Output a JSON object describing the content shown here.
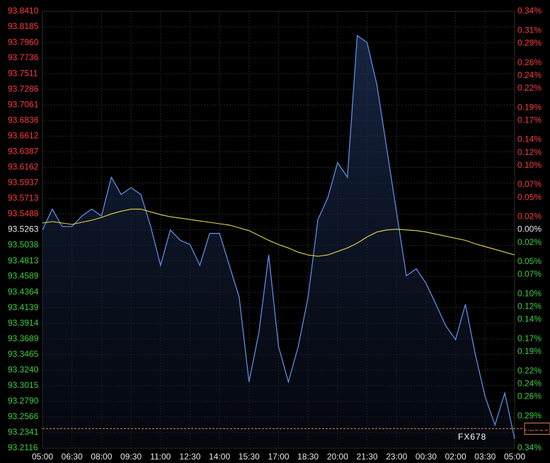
{
  "chart_data": {
    "type": "line",
    "watermark": "FX678",
    "background": "#000000",
    "grid": true,
    "up_color": "#ff3b3b",
    "down_color": "#3ecf3e",
    "flat_color": "#e8e8e8",
    "categories": [
      "05:00",
      null,
      null,
      "06:30",
      null,
      null,
      "08:00",
      null,
      null,
      "09:30",
      null,
      null,
      "11:00",
      null,
      null,
      "12:30",
      null,
      null,
      "14:00",
      null,
      null,
      "15:30",
      null,
      null,
      "17:00",
      null,
      null,
      "18:30",
      null,
      null,
      "20:00",
      null,
      null,
      "21:30",
      null,
      null,
      "23:00",
      null,
      null,
      "00:30",
      null,
      null,
      "02:00",
      null,
      null,
      "03:30",
      null,
      null,
      "05:00"
    ],
    "series": [
      {
        "color": "#5b8de0",
        "fill": true,
        "values": [
          93.526,
          93.556,
          93.531,
          93.531,
          93.546,
          93.556,
          93.546,
          93.602,
          93.577,
          93.587,
          93.577,
          93.531,
          93.475,
          93.526,
          93.511,
          93.505,
          93.475,
          93.521,
          93.521,
          93.475,
          93.429,
          93.307,
          93.378,
          93.49,
          93.358,
          93.307,
          93.358,
          93.429,
          93.541,
          93.572,
          93.623,
          93.602,
          93.806,
          93.796,
          93.735,
          93.643,
          93.551,
          93.46,
          93.47,
          93.449,
          93.419,
          93.388,
          93.368,
          93.419,
          93.347,
          93.286,
          93.245,
          93.291,
          93.225
        ]
      },
      {
        "color": "#e0d84a",
        "fill": false,
        "values": [
          93.536,
          93.538,
          93.536,
          93.534,
          93.537,
          93.54,
          93.544,
          93.549,
          93.553,
          93.556,
          93.556,
          93.552,
          93.548,
          93.545,
          93.543,
          93.541,
          93.539,
          93.537,
          93.535,
          93.533,
          93.529,
          93.525,
          93.518,
          93.511,
          93.505,
          93.5,
          93.494,
          93.49,
          93.488,
          93.49,
          93.495,
          93.5,
          93.507,
          93.516,
          93.523,
          93.526,
          93.527,
          93.526,
          93.525,
          93.523,
          93.52,
          93.517,
          93.514,
          93.511,
          93.506,
          93.502,
          93.498,
          93.494,
          93.49
        ]
      }
    ],
    "ylim": [
      93.2116,
      93.841
    ],
    "yticks": [
      {
        "value": 93.841,
        "label": "93.8410"
      },
      {
        "value": 93.8185,
        "label": "93.8185"
      },
      {
        "value": 93.796,
        "label": "93.7960"
      },
      {
        "value": 93.7736,
        "label": "93.7736"
      },
      {
        "value": 93.7511,
        "label": "93.7511"
      },
      {
        "value": 93.7286,
        "label": "93.7286"
      },
      {
        "value": 93.7061,
        "label": "93.7061"
      },
      {
        "value": 93.6836,
        "label": "93.6836"
      },
      {
        "value": 93.6612,
        "label": "93.6612"
      },
      {
        "value": 93.6387,
        "label": "93.6387"
      },
      {
        "value": 93.6162,
        "label": "93.6162"
      },
      {
        "value": 93.5937,
        "label": "93.5937"
      },
      {
        "value": 93.5713,
        "label": "93.5713"
      },
      {
        "value": 93.5488,
        "label": "93.5488"
      },
      {
        "value": 93.5263,
        "label": "93.5263"
      },
      {
        "value": 93.5038,
        "label": "93.5038"
      },
      {
        "value": 93.4813,
        "label": "93.4813"
      },
      {
        "value": 93.4589,
        "label": "93.4589"
      },
      {
        "value": 93.4364,
        "label": "93.4364"
      },
      {
        "value": 93.4139,
        "label": "93.4139"
      },
      {
        "value": 93.3914,
        "label": "93.3914"
      },
      {
        "value": 93.3689,
        "label": "93.3689"
      },
      {
        "value": 93.3465,
        "label": "93.3465"
      },
      {
        "value": 93.324,
        "label": "93.3240"
      },
      {
        "value": 93.3015,
        "label": "93.3015"
      },
      {
        "value": 93.279,
        "label": "93.2790"
      },
      {
        "value": 93.2566,
        "label": "93.2566"
      },
      {
        "value": 93.2341,
        "label": "93.2341"
      },
      {
        "value": 93.2116,
        "label": "93.2116"
      }
    ],
    "y2lim": [
      -0.34,
      0.34
    ],
    "y2ticks": [
      {
        "value": 0.34,
        "label": "0.34%"
      },
      {
        "value": 0.31,
        "label": "0.31%"
      },
      {
        "value": 0.29,
        "label": "0.29%"
      },
      {
        "value": 0.26,
        "label": "0.26%"
      },
      {
        "value": 0.24,
        "label": "0.24%"
      },
      {
        "value": 0.22,
        "label": "0.22%"
      },
      {
        "value": 0.19,
        "label": "0.19%"
      },
      {
        "value": 0.17,
        "label": "0.17%"
      },
      {
        "value": 0.14,
        "label": "0.14%"
      },
      {
        "value": 0.12,
        "label": "0.12%"
      },
      {
        "value": 0.1,
        "label": "0.10%"
      },
      {
        "value": 0.07,
        "label": "0.07%"
      },
      {
        "value": 0.05,
        "label": "0.05%"
      },
      {
        "value": 0.02,
        "label": "0.02%"
      },
      {
        "value": 0,
        "label": "0.00%"
      },
      {
        "value": -0.02,
        "label": "0.02%"
      },
      {
        "value": -0.05,
        "label": "0.05%"
      },
      {
        "value": -0.07,
        "label": "0.07%"
      },
      {
        "value": -0.1,
        "label": "0.10%"
      },
      {
        "value": -0.12,
        "label": "0.12%"
      },
      {
        "value": -0.14,
        "label": "0.14%"
      },
      {
        "value": -0.17,
        "label": "0.17%"
      },
      {
        "value": -0.19,
        "label": "0.19%"
      },
      {
        "value": -0.22,
        "label": "0.22%"
      },
      {
        "value": -0.24,
        "label": "0.24%"
      },
      {
        "value": -0.26,
        "label": "0.26%"
      },
      {
        "value": -0.29,
        "label": "0.29%"
      },
      {
        "value": -0.34,
        "label": "0.34%"
      }
    ],
    "last_price": 93.2396
  }
}
